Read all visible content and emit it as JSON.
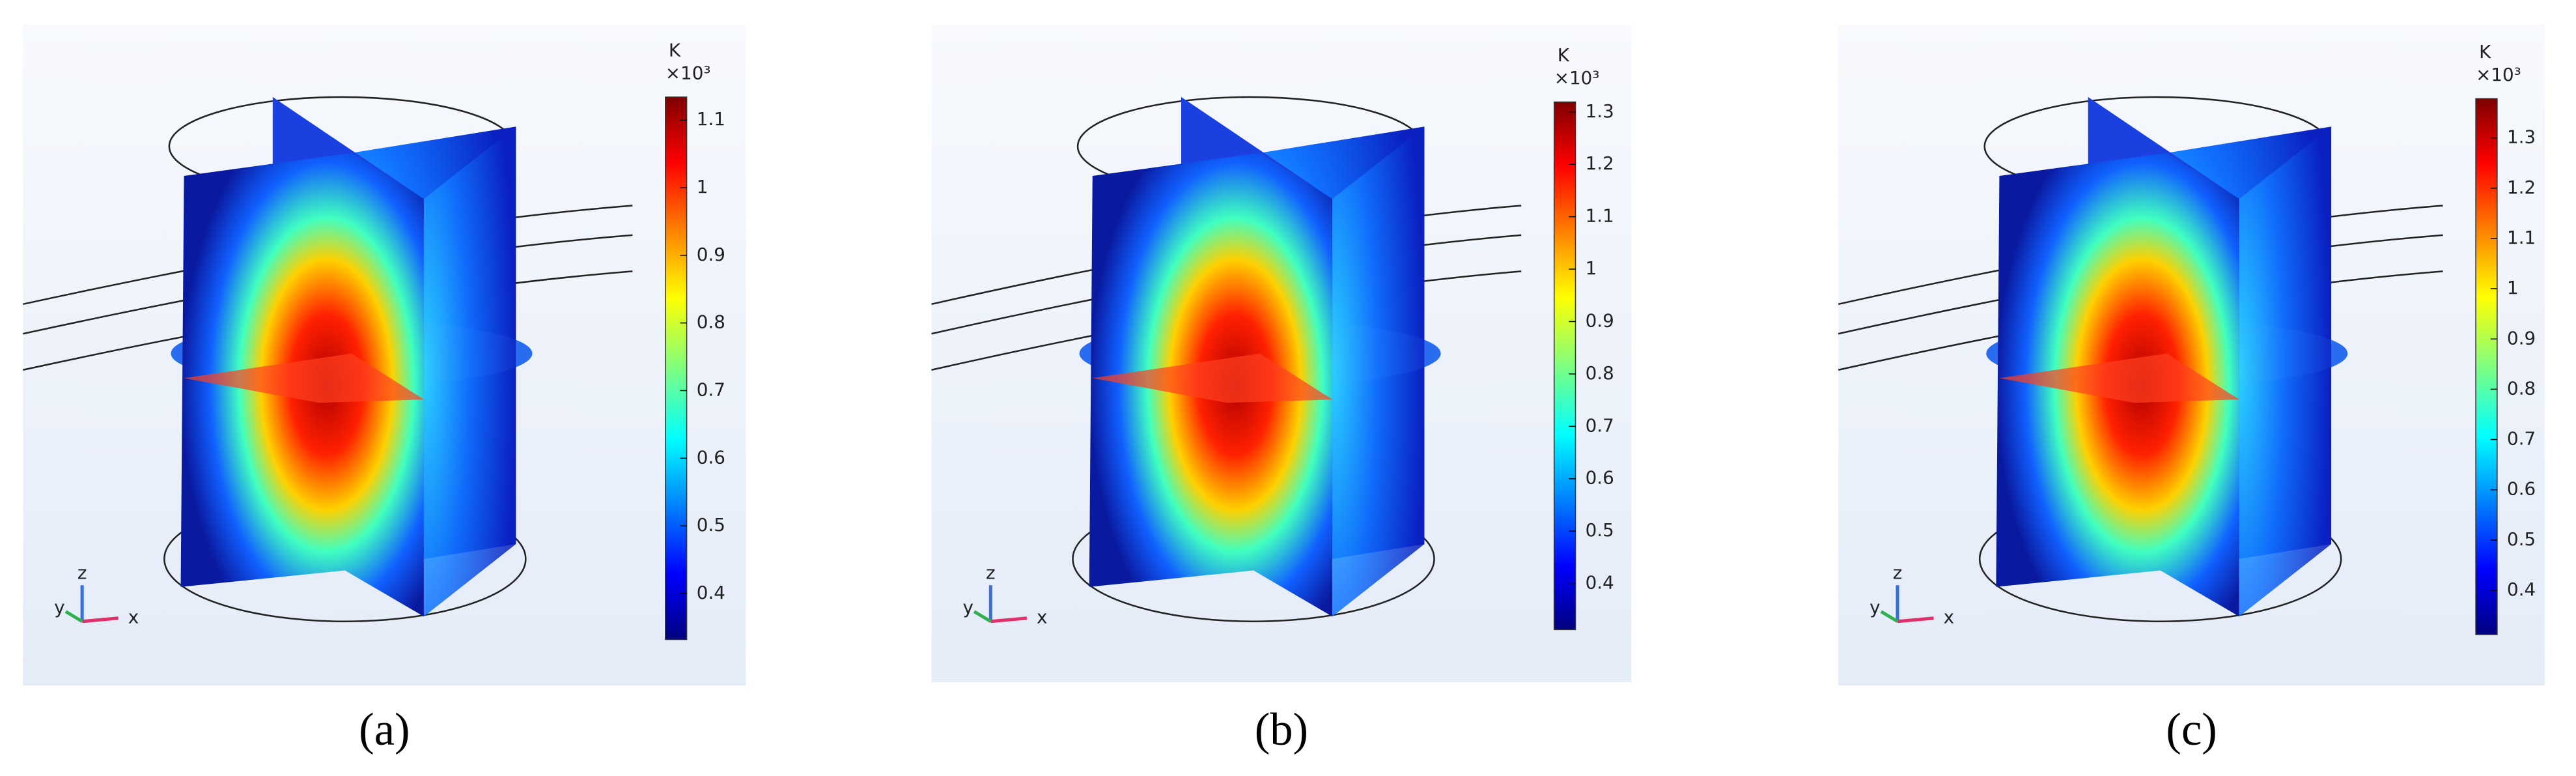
{
  "panels": [
    {
      "label": "(a)",
      "colorbar": {
        "unit": "K",
        "scale": "×10³",
        "range": [
          0.332,
          1.134
        ],
        "ticks": [
          1.1,
          1,
          0.9,
          0.8,
          0.7,
          0.6,
          0.5,
          0.4
        ]
      },
      "axes": {
        "x": "x",
        "y": "y",
        "z": "z"
      }
    },
    {
      "label": "(b)",
      "colorbar": {
        "unit": "K",
        "scale": "×10³",
        "range": [
          0.312,
          1.319
        ],
        "ticks": [
          1.3,
          1.2,
          1.1,
          1,
          0.9,
          0.8,
          0.7,
          0.6,
          0.5,
          0.4
        ]
      },
      "axes": {
        "x": "x",
        "y": "y",
        "z": "z"
      }
    },
    {
      "label": "(c)",
      "colorbar": {
        "unit": "K",
        "scale": "×10³",
        "range": [
          0.312,
          1.378
        ],
        "ticks": [
          1.3,
          1.2,
          1.1,
          1,
          0.9,
          0.8,
          0.7,
          0.6,
          0.5,
          0.4
        ]
      },
      "axes": {
        "x": "x",
        "y": "y",
        "z": "z"
      }
    }
  ]
}
